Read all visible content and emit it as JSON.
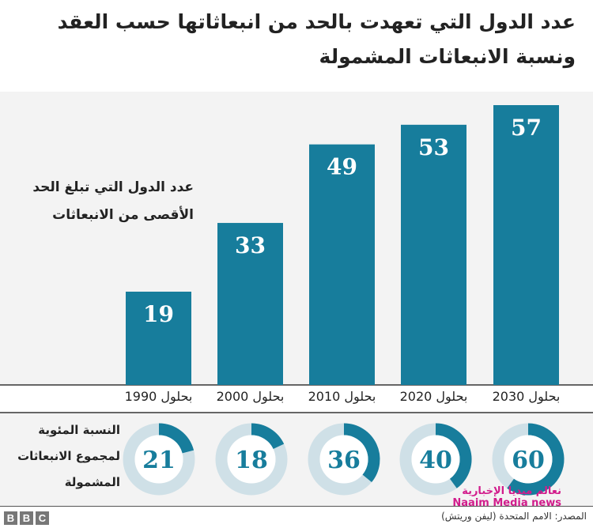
{
  "title": "عدد الدول التي تعهدت بالحد من انبعاثاتها حسب العقد ونسبة الانبعاثات المشمولة",
  "side_label_bars": [
    "عدد الدول التي تبلغ الحد",
    "الأقصى من الانبعاثات"
  ],
  "side_label_donuts": [
    "النسبة المئوية",
    "لمجموع الانبعاثات",
    "المشمولة"
  ],
  "source": "المصدر: الامم المتحدة (ليفن وريتش)",
  "logo": "BBC",
  "watermark": [
    "نعالم ميديا الإخبارية",
    "Naaim Media news"
  ],
  "colors": {
    "bar": "#177d9c",
    "ring_bg": "#cfe0e7",
    "panel_bg": "#f3f3f3"
  },
  "chart_data": [
    {
      "type": "bar",
      "categories": [
        "بحلول 1990",
        "بحلول 2000",
        "بحلول 2010",
        "بحلول 2020",
        "بحلول 2030"
      ],
      "values": [
        19,
        33,
        49,
        53,
        57
      ],
      "ylim": [
        0,
        57
      ]
    },
    {
      "type": "pie",
      "subtype": "donut",
      "categories": [
        "بحلول 1990",
        "بحلول 2000",
        "بحلول 2010",
        "بحلول 2020",
        "بحلول 2030"
      ],
      "values": [
        21,
        18,
        36,
        40,
        60
      ],
      "unit": "%"
    }
  ]
}
